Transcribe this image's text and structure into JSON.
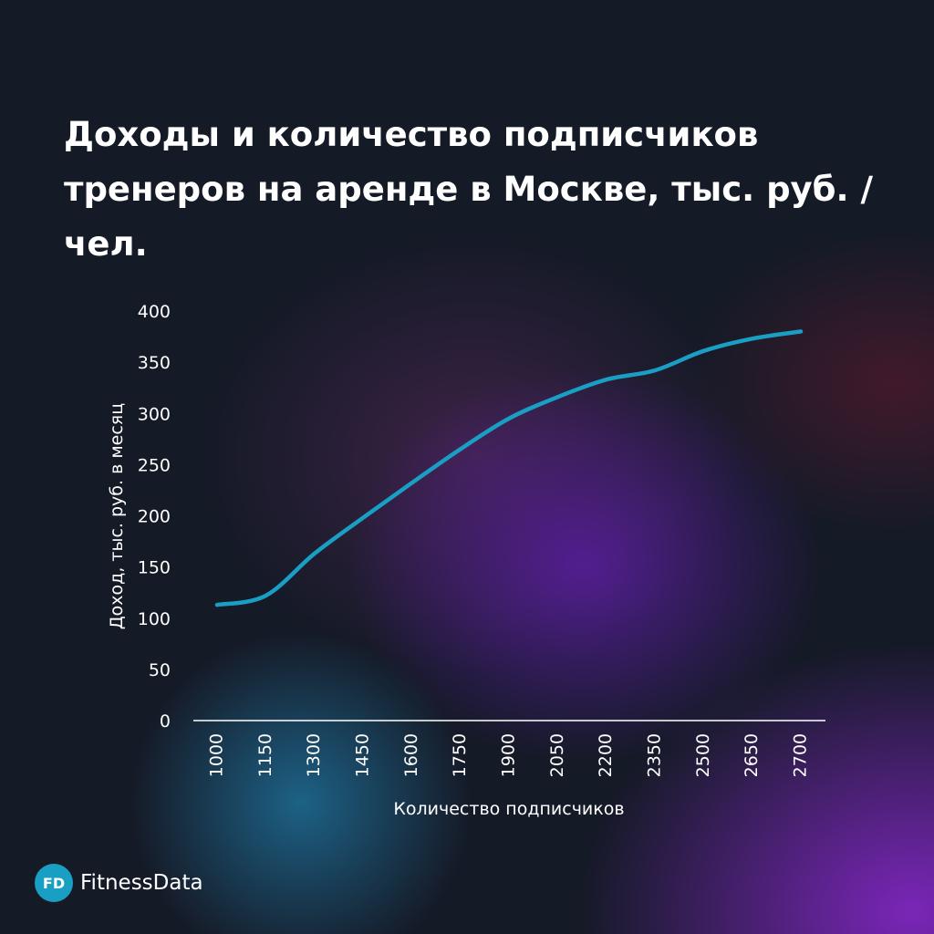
{
  "title": "Доходы и количество подписчиков тренеров на аренде в Москве, тыс. руб. / чел.",
  "brand": {
    "badge": "FD",
    "name": "FitnessData"
  },
  "colors": {
    "line": "#1a9fc4",
    "axis": "#ffffff",
    "text": "#ffffff"
  },
  "chart_data": {
    "type": "line",
    "xlabel": "Количество подписчиков",
    "ylabel": "Доход, тыс. руб. в месяц",
    "categories": [
      "1000",
      "1150",
      "1300",
      "1450",
      "1600",
      "1750",
      "1900",
      "2050",
      "2200",
      "2350",
      "2500",
      "2650",
      "2700"
    ],
    "yticks": [
      "0",
      "50",
      "100",
      "150",
      "200",
      "250",
      "300",
      "350",
      "400"
    ],
    "ylim": [
      0,
      400
    ],
    "grid": false,
    "series": [
      {
        "values": [
          113,
          122,
          163,
          198,
          232,
          265,
          295,
          316,
          333,
          342,
          361,
          373,
          380
        ]
      }
    ]
  }
}
